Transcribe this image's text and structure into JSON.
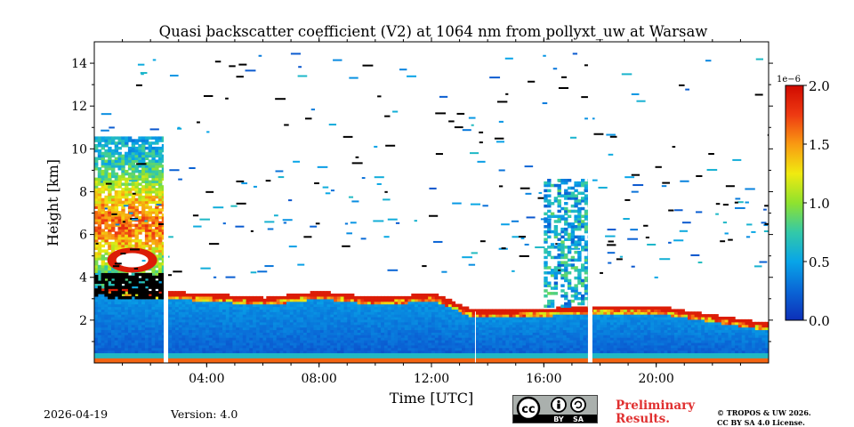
{
  "chart_data": {
    "type": "heatmap",
    "title": "Quasi backscatter coefficient (V2) at 1064 nm from pollyxt_uw at Warsaw",
    "xlabel": "Time [UTC]",
    "ylabel": "Height [km]",
    "xlim": [
      0,
      24
    ],
    "ylim": [
      0,
      15
    ],
    "x_ticks": [
      {
        "value": 4,
        "label": "04:00"
      },
      {
        "value": 8,
        "label": "08:00"
      },
      {
        "value": 12,
        "label": "12:00"
      },
      {
        "value": 16,
        "label": "16:00"
      },
      {
        "value": 20,
        "label": "20:00"
      }
    ],
    "y_ticks": [
      {
        "value": 2,
        "label": "2"
      },
      {
        "value": 4,
        "label": "4"
      },
      {
        "value": 6,
        "label": "6"
      },
      {
        "value": 8,
        "label": "8"
      },
      {
        "value": 10,
        "label": "10"
      },
      {
        "value": 12,
        "label": "12"
      },
      {
        "value": 14,
        "label": "14"
      }
    ],
    "colorbar": {
      "label": "",
      "exponent_label": "1e−6",
      "range": [
        0.0,
        2.0
      ],
      "ticks": [
        {
          "value": 0.0,
          "label": "0.0"
        },
        {
          "value": 0.5,
          "label": "0.5"
        },
        {
          "value": 1.0,
          "label": "1.0"
        },
        {
          "value": 1.5,
          "label": "1.5"
        },
        {
          "value": 2.0,
          "label": "2.0"
        }
      ],
      "colormap": [
        "#0d2fb8",
        "#0a66d6",
        "#08a5e8",
        "#33c9a8",
        "#8fe22e",
        "#f0ea10",
        "#f99a12",
        "#ee3a12",
        "#d00a00"
      ]
    },
    "data_gaps_utc": [
      2.55,
      17.65
    ],
    "boundary_layer_top_km": [
      {
        "time": 0.0,
        "height": 3.6
      },
      {
        "time": 2.0,
        "height": 3.3
      },
      {
        "time": 4.0,
        "height": 3.2
      },
      {
        "time": 6.0,
        "height": 3.0
      },
      {
        "time": 8.0,
        "height": 3.3
      },
      {
        "time": 10.0,
        "height": 3.0
      },
      {
        "time": 12.0,
        "height": 3.2
      },
      {
        "time": 13.5,
        "height": 2.4
      },
      {
        "time": 16.0,
        "height": 2.5
      },
      {
        "time": 18.0,
        "height": 2.6
      },
      {
        "time": 20.0,
        "height": 2.6
      },
      {
        "time": 22.0,
        "height": 2.2
      },
      {
        "time": 24.0,
        "height": 1.8
      }
    ],
    "annotations": []
  },
  "footer": {
    "date": "2026-04-19",
    "version": "Version: 4.0",
    "preliminary_line1": "Preliminary",
    "preliminary_line2": "Results.",
    "copyright_line1": "© TROPOS & UW 2026.",
    "copyright_line2": "CC BY SA 4.0 License.",
    "license_badge": {
      "by": "BY",
      "sa": "SA"
    }
  }
}
